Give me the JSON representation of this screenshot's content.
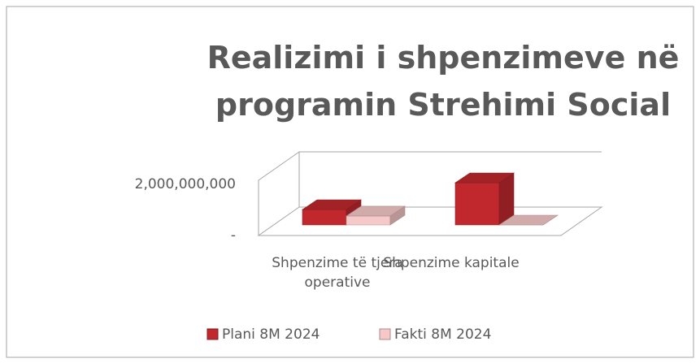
{
  "chart_data": {
    "type": "bar3d",
    "title": "Realizimi i shpenzimeve në programin Strehimi Social",
    "categories": [
      "Shpenzime të tjera operative",
      "Shpenzime kapitale"
    ],
    "series": [
      {
        "name": "Plani 8M 2024",
        "color": "#c0282d",
        "values": [
          600000000,
          1650000000
        ]
      },
      {
        "name": "Fakti 8M 2024",
        "color": "#f6c8c8",
        "values": [
          350000000,
          0
        ]
      }
    ],
    "ylim": [
      0,
      3000000000
    ],
    "yticks": [
      {
        "value": 0,
        "label": "-"
      },
      {
        "value": 2000000000,
        "label": "2,000,000,000"
      }
    ],
    "legend": "bottom"
  }
}
